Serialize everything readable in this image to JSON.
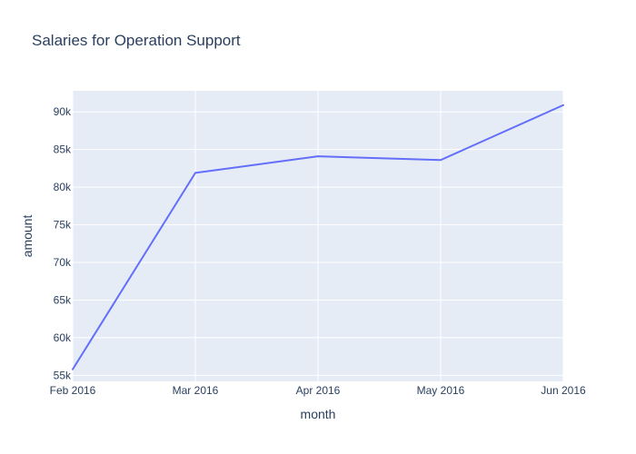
{
  "chart_data": {
    "type": "line",
    "title": "Salaries for Operation Support",
    "xlabel": "month",
    "ylabel": "amount",
    "x": [
      "Feb 2016",
      "Mar 2016",
      "Apr 2016",
      "May 2016",
      "Jun 2016"
    ],
    "series": [
      {
        "values": [
          55800,
          81900,
          84100,
          83600,
          90900
        ]
      }
    ],
    "ylim": [
      54200,
      92800
    ],
    "yticks": [
      55000,
      60000,
      65000,
      70000,
      75000,
      80000,
      85000,
      90000
    ],
    "ytick_labels": [
      "55k",
      "60k",
      "65k",
      "70k",
      "75k",
      "80k",
      "85k",
      "90k"
    ],
    "grid": true,
    "colors": {
      "line": "#636efa",
      "plot_bg": "#e5ecf6",
      "grid": "#ffffff",
      "text": "#2a3f5f"
    }
  }
}
